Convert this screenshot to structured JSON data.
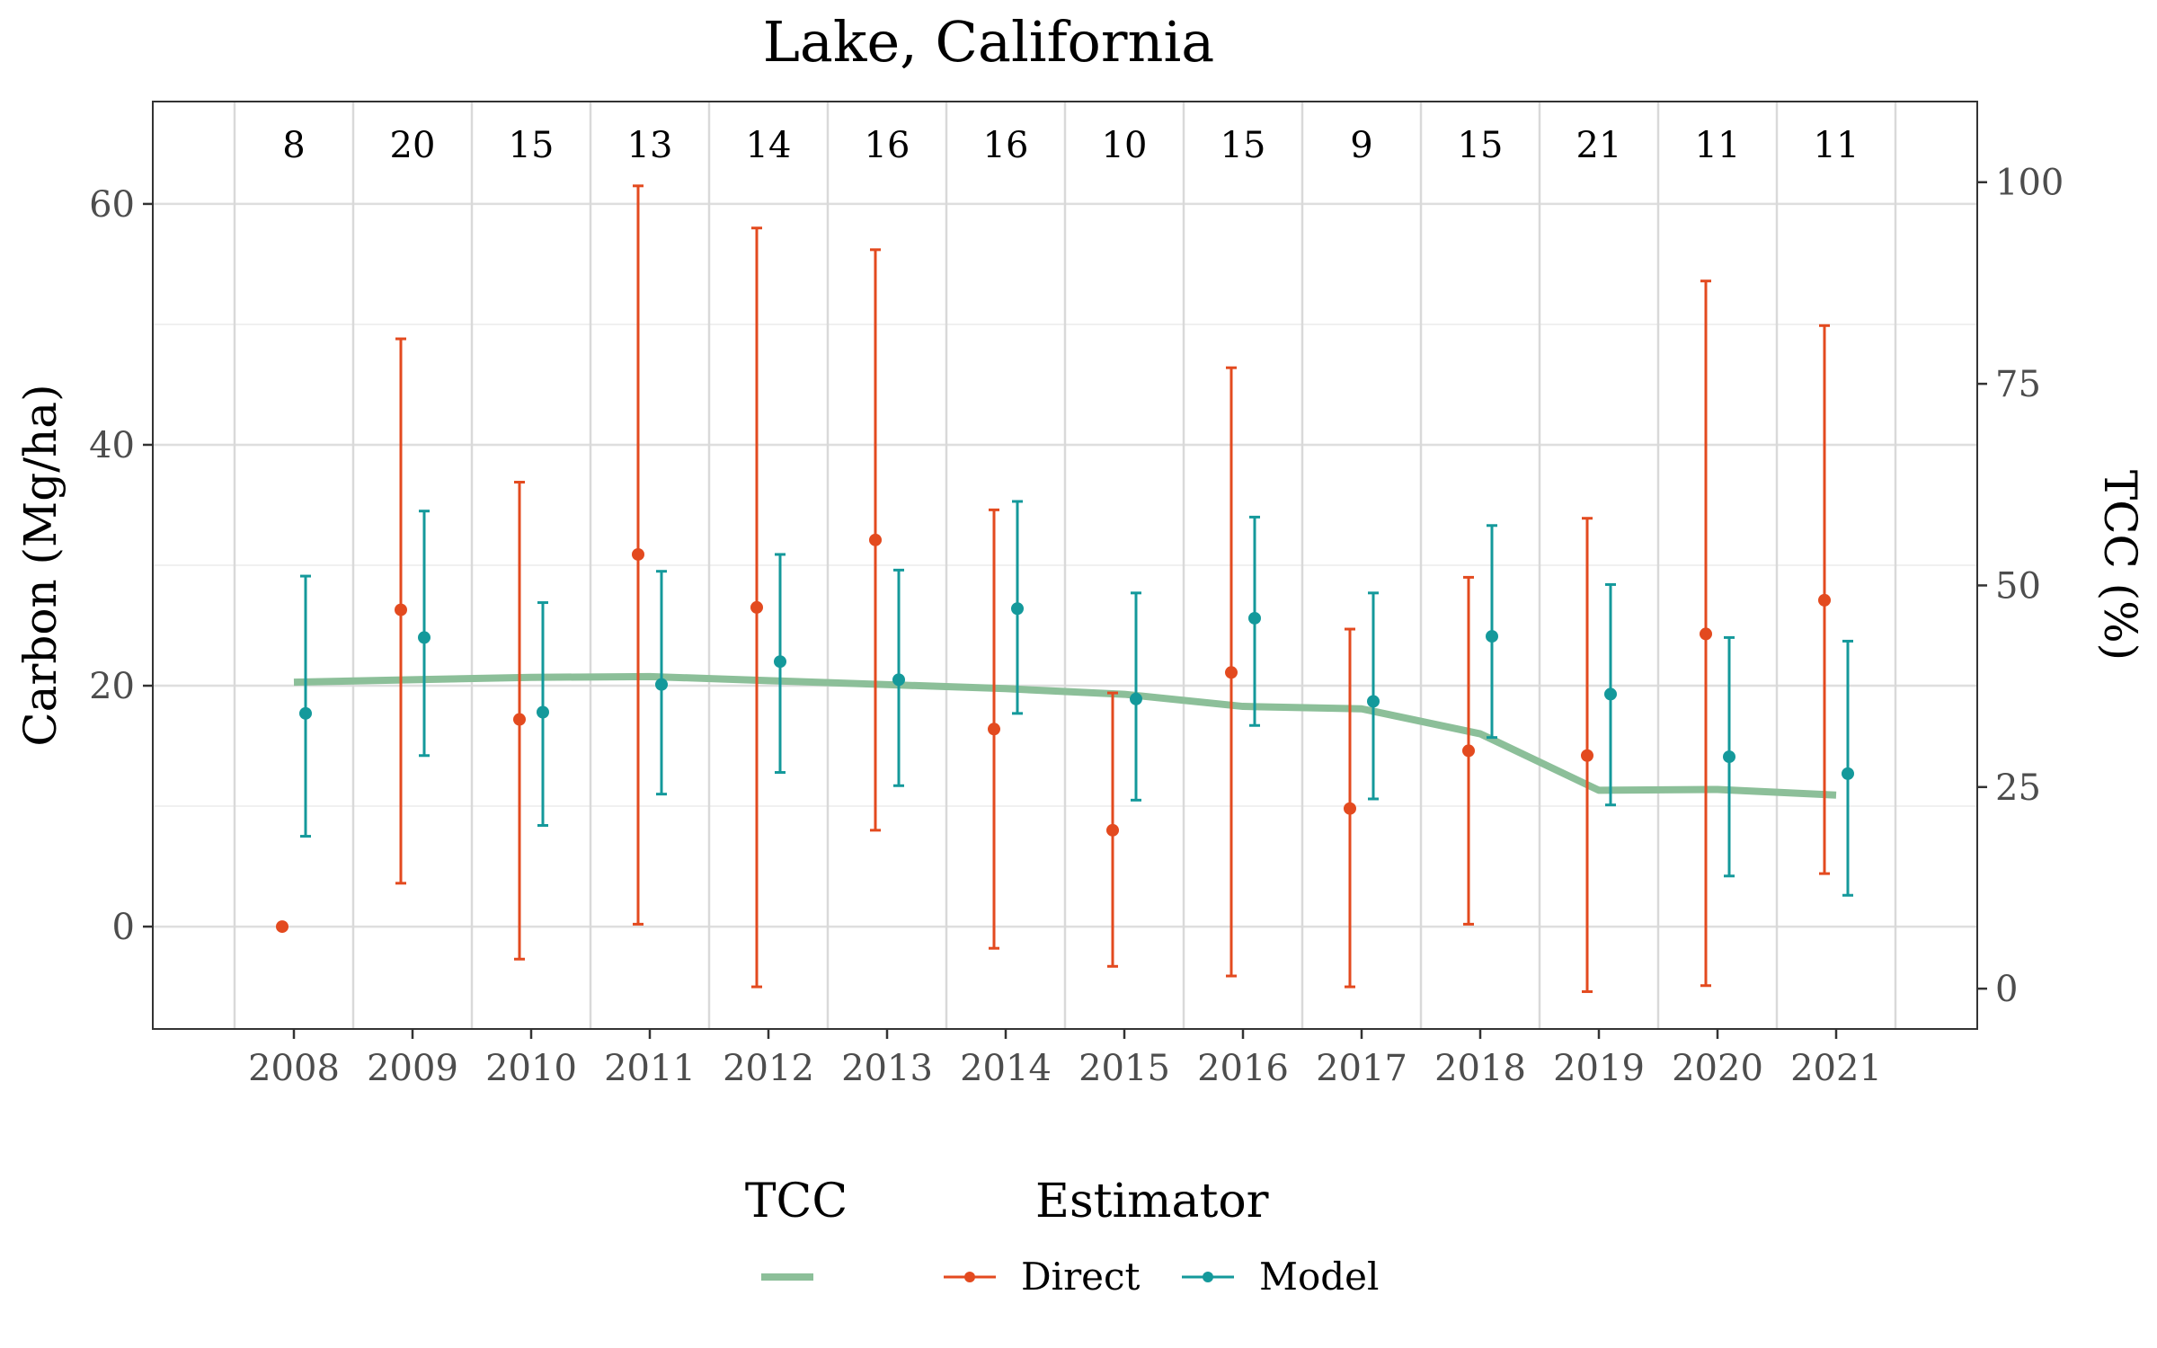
{
  "chart_data": {
    "type": "line",
    "title": "Lake, California",
    "xlabel": "",
    "ylabel": "Carbon (Mg/ha)",
    "y2label": "TCC (%)",
    "ylim": [
      -8.5,
      68.5
    ],
    "y2lim": [
      -5,
      110
    ],
    "yticks": [
      0,
      20,
      40,
      60
    ],
    "y2ticks": [
      0,
      25,
      50,
      75,
      100
    ],
    "grid": true,
    "legend_position": "bottom",
    "years": [
      2008,
      2009,
      2010,
      2011,
      2012,
      2013,
      2014,
      2015,
      2016,
      2017,
      2018,
      2019,
      2020,
      2021
    ],
    "sample_counts": [
      "8",
      "20",
      "15",
      "13",
      "14",
      "16",
      "16",
      "10",
      "15",
      "9",
      "15",
      "21",
      "11",
      "11"
    ],
    "series": [
      {
        "name": "Direct",
        "color": "#e34a1f",
        "values": [
          0,
          26.3,
          17.2,
          30.9,
          26.5,
          32.1,
          16.4,
          8.0,
          21.1,
          9.8,
          14.6,
          14.2,
          24.3,
          27.1
        ],
        "lower": [
          null,
          3.6,
          -2.7,
          0.2,
          -5.0,
          8.0,
          -1.8,
          -3.3,
          -4.1,
          -5.0,
          0.2,
          -5.4,
          -4.9,
          4.4
        ],
        "upper": [
          null,
          48.8,
          36.9,
          61.5,
          58.0,
          56.2,
          34.6,
          19.4,
          46.4,
          24.7,
          29.0,
          33.9,
          53.6,
          49.9
        ]
      },
      {
        "name": "Model",
        "color": "#14999b",
        "values": [
          17.7,
          24.0,
          17.8,
          20.1,
          22.0,
          20.5,
          26.4,
          18.9,
          25.6,
          18.7,
          24.1,
          19.3,
          14.1,
          12.7
        ],
        "lower": [
          7.5,
          14.2,
          8.4,
          11.0,
          12.8,
          11.7,
          17.7,
          10.5,
          16.7,
          10.6,
          15.7,
          10.1,
          4.2,
          2.6
        ],
        "upper": [
          29.1,
          34.5,
          26.9,
          29.5,
          30.9,
          29.6,
          35.3,
          27.7,
          34.0,
          27.7,
          33.3,
          28.4,
          24.0,
          23.7
        ]
      }
    ],
    "tcc": {
      "name": "TCC",
      "color": "#8cbf99",
      "values": [
        38.0,
        38.3,
        38.6,
        38.7,
        38.2,
        37.7,
        37.2,
        36.5,
        35.0,
        34.7,
        31.6,
        24.6,
        24.7,
        24.0
      ]
    }
  },
  "legend": {
    "tcc_title": "TCC",
    "estimator_title": "Estimator",
    "direct_label": "Direct",
    "model_label": "Model"
  }
}
